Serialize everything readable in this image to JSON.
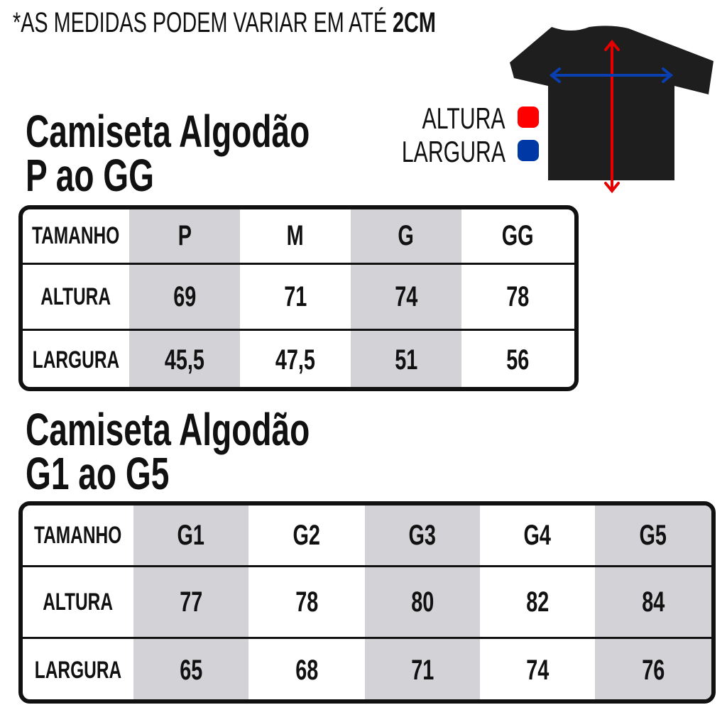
{
  "note": {
    "text": "*AS MEDIDAS PODEM VARIAR EM ATÉ ",
    "bold": "2CM"
  },
  "legend": {
    "altura": "ALTURA",
    "largura": "LARGURA",
    "altura_color": "#ff0000",
    "largura_color": "#0039a6"
  },
  "tables": [
    {
      "title1": "Camiseta Algodão",
      "title2": "P ao GG",
      "header": [
        "TAMANHO",
        "P",
        "M",
        "G",
        "GG"
      ],
      "rows": [
        [
          "ALTURA",
          "69",
          "71",
          "74",
          "78"
        ],
        [
          "LARGURA",
          "45,5",
          "47,5",
          "51",
          "56"
        ]
      ]
    },
    {
      "title1": "Camiseta Algodão",
      "title2": "G1 ao G5",
      "header": [
        "TAMANHO",
        "G1",
        "G2",
        "G3",
        "G4",
        "G5"
      ],
      "rows": [
        [
          "ALTURA",
          "77",
          "78",
          "80",
          "82",
          "84"
        ],
        [
          "LARGURA",
          "65",
          "68",
          "71",
          "74",
          "76"
        ]
      ]
    }
  ]
}
